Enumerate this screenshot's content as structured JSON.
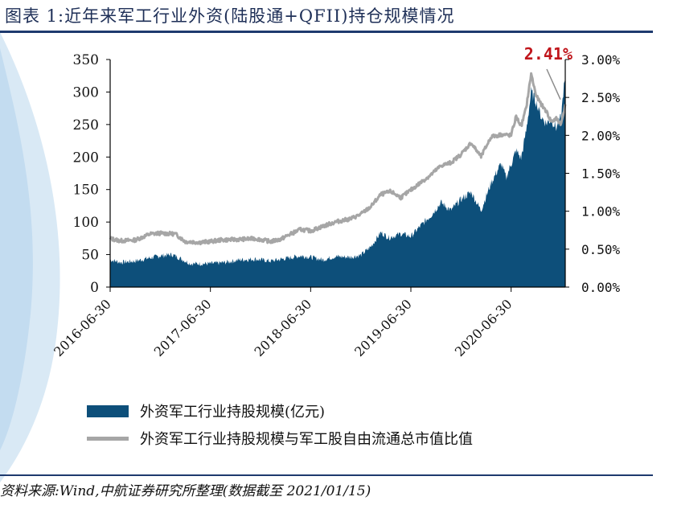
{
  "title": "图表 1:近年来军工行业外资(陆股通+QFII)持仓规模情况",
  "source": "资料来源:Wind,中航证券研究所整理(数据截至 2021/01/15)",
  "colors": {
    "area": "#0d4f7a",
    "line": "#a6a6a6",
    "rule": "#1e3a6e",
    "annotation": "#c0151b"
  },
  "chart_data": {
    "type": "area",
    "x_tick_labels": [
      "2016-06-30",
      "2017-06-30",
      "2018-06-30",
      "2019-06-30",
      "2020-06-30"
    ],
    "x_ticks_years": [
      2016.5,
      2017.5,
      2018.5,
      2019.5,
      2020.5
    ],
    "xlim": [
      2016.5,
      2021.04
    ],
    "y_left": {
      "ylim": [
        0,
        350
      ],
      "ticks": [
        "0",
        "50",
        "100",
        "150",
        "200",
        "250",
        "300",
        "350"
      ]
    },
    "y_right": {
      "ylim": [
        0,
        3.0
      ],
      "ticks": [
        "0.00%",
        "0.50%",
        "1.00%",
        "1.50%",
        "2.00%",
        "2.50%",
        "3.00%"
      ]
    },
    "annotation": {
      "text": "2.41%",
      "value_pct": 2.41
    },
    "series": [
      {
        "name": "外资军工行业持股规模(亿元)",
        "kind": "area",
        "axis": "left",
        "points": [
          [
            2016.5,
            42
          ],
          [
            2016.6,
            38
          ],
          [
            2016.75,
            40
          ],
          [
            2016.9,
            45
          ],
          [
            2017.0,
            48
          ],
          [
            2017.12,
            50
          ],
          [
            2017.2,
            44
          ],
          [
            2017.3,
            36
          ],
          [
            2017.5,
            36
          ],
          [
            2017.65,
            38
          ],
          [
            2017.8,
            42
          ],
          [
            2017.95,
            43
          ],
          [
            2018.1,
            40
          ],
          [
            2018.25,
            44
          ],
          [
            2018.4,
            48
          ],
          [
            2018.5,
            46
          ],
          [
            2018.62,
            42
          ],
          [
            2018.75,
            47
          ],
          [
            2018.9,
            46
          ],
          [
            2019.0,
            49
          ],
          [
            2019.1,
            62
          ],
          [
            2019.2,
            84
          ],
          [
            2019.28,
            76
          ],
          [
            2019.4,
            82
          ],
          [
            2019.5,
            78
          ],
          [
            2019.62,
            98
          ],
          [
            2019.7,
            110
          ],
          [
            2019.8,
            130
          ],
          [
            2019.9,
            118
          ],
          [
            2020.0,
            135
          ],
          [
            2020.1,
            146
          ],
          [
            2020.2,
            118
          ],
          [
            2020.3,
            160
          ],
          [
            2020.4,
            190
          ],
          [
            2020.45,
            168
          ],
          [
            2020.55,
            210
          ],
          [
            2020.6,
            198
          ],
          [
            2020.65,
            240
          ],
          [
            2020.7,
            300
          ],
          [
            2020.75,
            285
          ],
          [
            2020.8,
            262
          ],
          [
            2020.85,
            252
          ],
          [
            2020.9,
            258
          ],
          [
            2020.95,
            245
          ],
          [
            2021.0,
            262
          ],
          [
            2021.02,
            300
          ],
          [
            2021.04,
            320
          ]
        ]
      },
      {
        "name": "外资军工行业持股规模与军工股自由流通总市值比值",
        "kind": "line",
        "axis": "right",
        "points": [
          [
            2016.5,
            0.64
          ],
          [
            2016.6,
            0.61
          ],
          [
            2016.75,
            0.62
          ],
          [
            2016.9,
            0.7
          ],
          [
            2017.0,
            0.71
          ],
          [
            2017.15,
            0.7
          ],
          [
            2017.25,
            0.6
          ],
          [
            2017.4,
            0.59
          ],
          [
            2017.5,
            0.6
          ],
          [
            2017.6,
            0.62
          ],
          [
            2017.8,
            0.63
          ],
          [
            2017.95,
            0.64
          ],
          [
            2018.1,
            0.6
          ],
          [
            2018.2,
            0.63
          ],
          [
            2018.3,
            0.7
          ],
          [
            2018.4,
            0.76
          ],
          [
            2018.5,
            0.74
          ],
          [
            2018.62,
            0.8
          ],
          [
            2018.75,
            0.86
          ],
          [
            2018.9,
            0.9
          ],
          [
            2019.0,
            0.96
          ],
          [
            2019.1,
            1.06
          ],
          [
            2019.2,
            1.22
          ],
          [
            2019.3,
            1.26
          ],
          [
            2019.4,
            1.18
          ],
          [
            2019.5,
            1.28
          ],
          [
            2019.6,
            1.38
          ],
          [
            2019.7,
            1.48
          ],
          [
            2019.8,
            1.6
          ],
          [
            2019.9,
            1.64
          ],
          [
            2020.0,
            1.75
          ],
          [
            2020.1,
            1.9
          ],
          [
            2020.2,
            1.72
          ],
          [
            2020.3,
            1.98
          ],
          [
            2020.4,
            2.01
          ],
          [
            2020.5,
            2.0
          ],
          [
            2020.55,
            2.25
          ],
          [
            2020.6,
            2.12
          ],
          [
            2020.65,
            2.36
          ],
          [
            2020.7,
            2.81
          ],
          [
            2020.75,
            2.52
          ],
          [
            2020.8,
            2.41
          ],
          [
            2020.85,
            2.32
          ],
          [
            2020.9,
            2.18
          ],
          [
            2020.95,
            2.22
          ],
          [
            2021.0,
            2.15
          ],
          [
            2021.04,
            2.41
          ]
        ]
      }
    ]
  }
}
